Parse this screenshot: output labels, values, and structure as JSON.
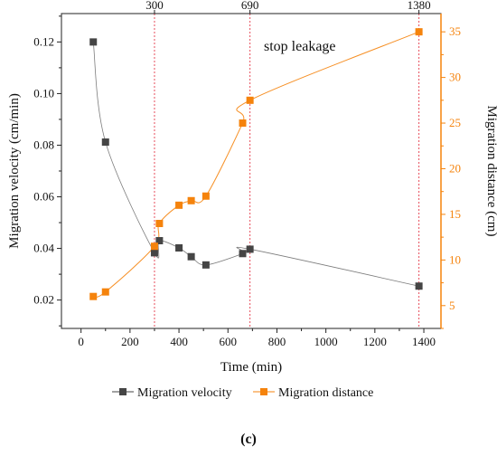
{
  "chart_data": {
    "type": "scatter",
    "xlabel": "Time (min)",
    "ylabel_left": "Migration velocity (cm/min)",
    "ylabel_right": "Migration distance (cm)",
    "xlim": [
      -80,
      1470
    ],
    "ylim_left": [
      0.009,
      0.131
    ],
    "ylim_right": [
      2.5,
      37.0
    ],
    "x_ticks": [
      0,
      200,
      400,
      600,
      800,
      1000,
      1200,
      1400
    ],
    "y_left_ticks": [
      0.02,
      0.04,
      0.06,
      0.08,
      0.1,
      0.12
    ],
    "y_left_tick_labels": [
      "0.02",
      "0.04",
      "0.06",
      "0.08",
      "0.10",
      "0.12"
    ],
    "y_right_ticks": [
      5,
      10,
      15,
      20,
      25,
      30,
      35
    ],
    "top_markers": [
      300,
      690,
      1380
    ],
    "annotation": "stop leakage",
    "series": [
      {
        "name": "Migration velocity",
        "color": "#454545",
        "axis": "left",
        "x": [
          50,
          100,
          300,
          320,
          400,
          450,
          510,
          660,
          690,
          1380
        ],
        "values": [
          0.12,
          0.0812,
          0.0383,
          0.043,
          0.0402,
          0.0368,
          0.0336,
          0.038,
          0.0397,
          0.0254
        ]
      },
      {
        "name": "Migration distance",
        "color": "#f5830c",
        "axis": "right",
        "x": [
          50,
          100,
          300,
          320,
          400,
          450,
          510,
          660,
          690,
          1380
        ],
        "values": [
          6.0,
          6.5,
          11.5,
          14.0,
          16.0,
          16.5,
          17.0,
          25.0,
          27.5,
          35.0
        ]
      }
    ]
  },
  "caption": "(c)",
  "colors": {
    "right_axis": "#f5830c",
    "marker_lines": "#e74c5b",
    "axis": "#222222"
  }
}
